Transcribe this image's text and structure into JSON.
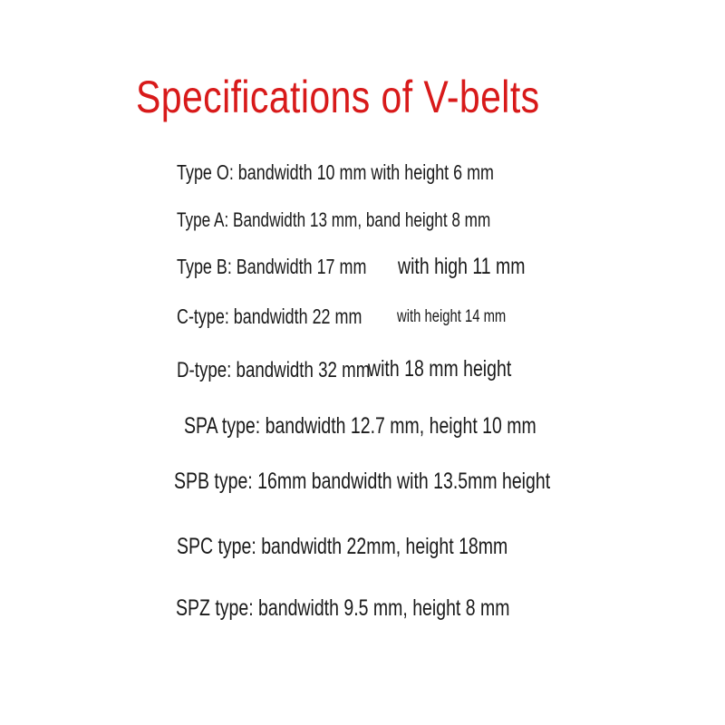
{
  "title": "Specifications of V-belts",
  "title_color": "#d81a1a",
  "specs": [
    {
      "text": "Type O: bandwidth 10 mm with height 6 mm"
    },
    {
      "text": "Type A: Bandwidth 13 mm, band height 8 mm"
    },
    {
      "part1": "Type B: Bandwidth 17 mm",
      "part2": "with high 11 mm"
    },
    {
      "part1": "C-type: bandwidth 22 mm",
      "part2": "with height 14 mm"
    },
    {
      "part1": "D-type: bandwidth 32 mm",
      "part2": "with 18 mm height"
    },
    {
      "text": "SPA type: bandwidth 12.7 mm, height 10 mm"
    },
    {
      "text": "SPB type: 16mm bandwidth with 13.5mm height"
    },
    {
      "text": "SPC type: bandwidth 22mm, height 18mm"
    },
    {
      "text": "SPZ type: bandwidth 9.5 mm, height 8 mm"
    }
  ]
}
